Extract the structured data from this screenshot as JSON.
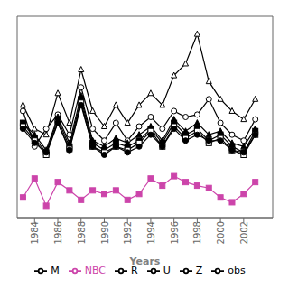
{
  "chart_data": {
    "type": "line",
    "x": [
      1983,
      1984,
      1985,
      1986,
      1987,
      1988,
      1989,
      1990,
      1991,
      1992,
      1993,
      1994,
      1995,
      1996,
      1997,
      1998,
      1999,
      2000,
      2001,
      2002,
      2003
    ],
    "xlabel": "Years",
    "xlim": [
      1982.5,
      2004.5
    ],
    "xticks": [
      1984,
      1986,
      1988,
      1990,
      1992,
      1994,
      1996,
      1998,
      2000,
      2002
    ],
    "ylim": [
      1.5,
      18.5
    ],
    "tick_labels": "x",
    "grid": false,
    "legend": "bottom",
    "series": [
      {
        "name": "NBC",
        "color": "#cc44aa",
        "marker": "square",
        "values": [
          3.2,
          4.8,
          2.5,
          4.5,
          3.8,
          3.0,
          3.8,
          3.5,
          3.8,
          3.0,
          3.5,
          4.8,
          4.2,
          5.0,
          4.5,
          4.2,
          4.0,
          3.2,
          2.8,
          3.5,
          4.5
        ]
      },
      {
        "color": "#000000",
        "marker": "open_triangle",
        "values": [
          11.0,
          9.0,
          8.5,
          12.0,
          9.5,
          14.0,
          10.5,
          9.2,
          11.0,
          9.5,
          11.0,
          12.0,
          11.0,
          13.5,
          14.5,
          17.0,
          13.0,
          11.5,
          10.5,
          9.8,
          11.5
        ]
      },
      {
        "name": "Z",
        "color": "#000000",
        "marker": "open_circle",
        "values": [
          10.5,
          7.5,
          9.0,
          10.2,
          8.5,
          12.5,
          9.0,
          8.0,
          9.5,
          8.0,
          9.2,
          10.0,
          9.0,
          10.5,
          10.0,
          10.2,
          11.5,
          9.5,
          8.5,
          8.0,
          9.8
        ]
      },
      {
        "name": "U",
        "color": "#000000",
        "marker": "triangle",
        "values": [
          9.5,
          8.5,
          7.2,
          10.0,
          7.8,
          11.8,
          8.0,
          7.5,
          8.2,
          7.8,
          8.5,
          9.2,
          8.0,
          9.8,
          8.8,
          9.5,
          8.5,
          8.8,
          7.8,
          7.5,
          9.0
        ]
      },
      {
        "name": "obs",
        "color": "#000000",
        "marker": "square",
        "values": [
          9.5,
          8.2,
          7.0,
          9.8,
          7.5,
          11.5,
          7.8,
          7.2,
          7.8,
          7.5,
          8.0,
          9.0,
          7.8,
          9.5,
          8.5,
          9.0,
          8.0,
          8.5,
          7.5,
          7.0,
          8.8
        ]
      },
      {
        "name": "M",
        "color": "#000000",
        "marker": "open_square",
        "values": [
          9.2,
          8.0,
          6.8,
          9.5,
          7.3,
          11.2,
          7.5,
          7.0,
          7.5,
          7.2,
          7.8,
          8.8,
          7.5,
          9.2,
          8.2,
          8.8,
          7.8,
          8.2,
          7.2,
          6.8,
          8.5
        ]
      },
      {
        "name": "R",
        "color": "#000000",
        "marker": "circle",
        "values": [
          9.0,
          7.8,
          7.0,
          9.5,
          7.2,
          11.0,
          7.5,
          6.8,
          7.5,
          7.0,
          7.5,
          8.5,
          7.5,
          9.0,
          8.0,
          8.5,
          8.0,
          8.0,
          7.2,
          7.0,
          8.5
        ]
      }
    ]
  }
}
